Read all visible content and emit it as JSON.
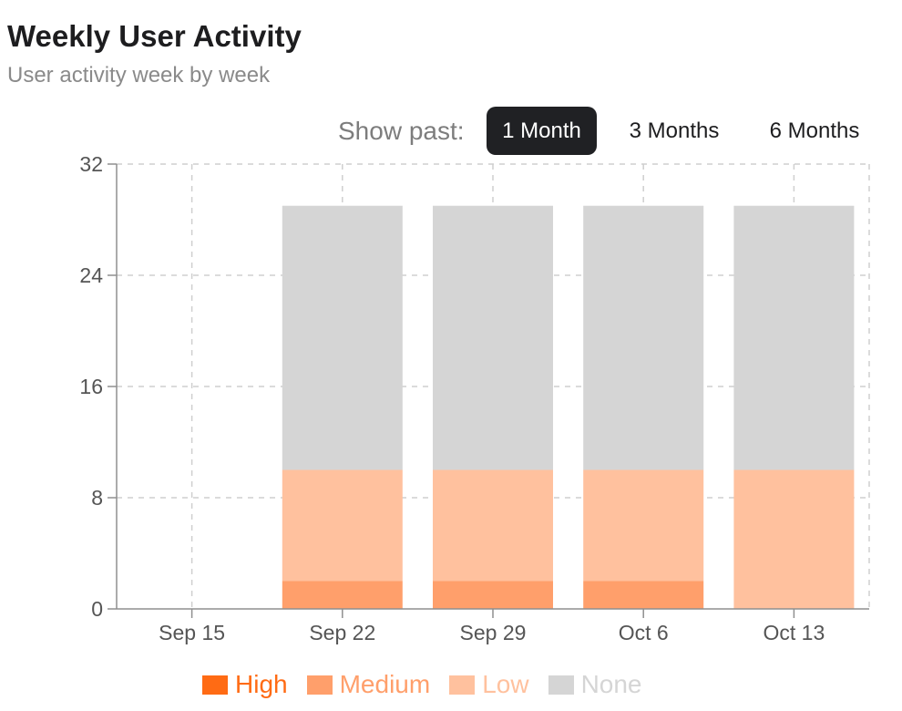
{
  "header": {
    "title": "Weekly User Activity",
    "subtitle": "User activity week by week"
  },
  "range_selector": {
    "label": "Show past:",
    "options": [
      {
        "label": "1 Month",
        "selected": true
      },
      {
        "label": "3 Months",
        "selected": false
      },
      {
        "label": "6 Months",
        "selected": false
      }
    ]
  },
  "colors": {
    "high": "#ff6b14",
    "medium": "#ff9f6b",
    "low": "#ffc19e",
    "none": "#d5d5d5",
    "grid": "#cfcfcf",
    "axis": "#8f8f8f",
    "active_button": "#202124"
  },
  "chart_data": {
    "type": "bar",
    "stacked": true,
    "categories": [
      "Sep 15",
      "Sep 22",
      "Sep 29",
      "Oct 6",
      "Oct 13"
    ],
    "series": [
      {
        "name": "High",
        "values": [
          0,
          0,
          0,
          0,
          0
        ],
        "color": "#ff6b14"
      },
      {
        "name": "Medium",
        "values": [
          0,
          2,
          2,
          2,
          0
        ],
        "color": "#ff9f6b"
      },
      {
        "name": "Low",
        "values": [
          0,
          8,
          8,
          8,
          10
        ],
        "color": "#ffc19e"
      },
      {
        "name": "None",
        "values": [
          0,
          19,
          19,
          19,
          19
        ],
        "color": "#d5d5d5"
      }
    ],
    "ylim": [
      0,
      32
    ],
    "yticks": [
      0,
      8,
      16,
      24,
      32
    ],
    "grid": true,
    "legend": "bottom"
  }
}
